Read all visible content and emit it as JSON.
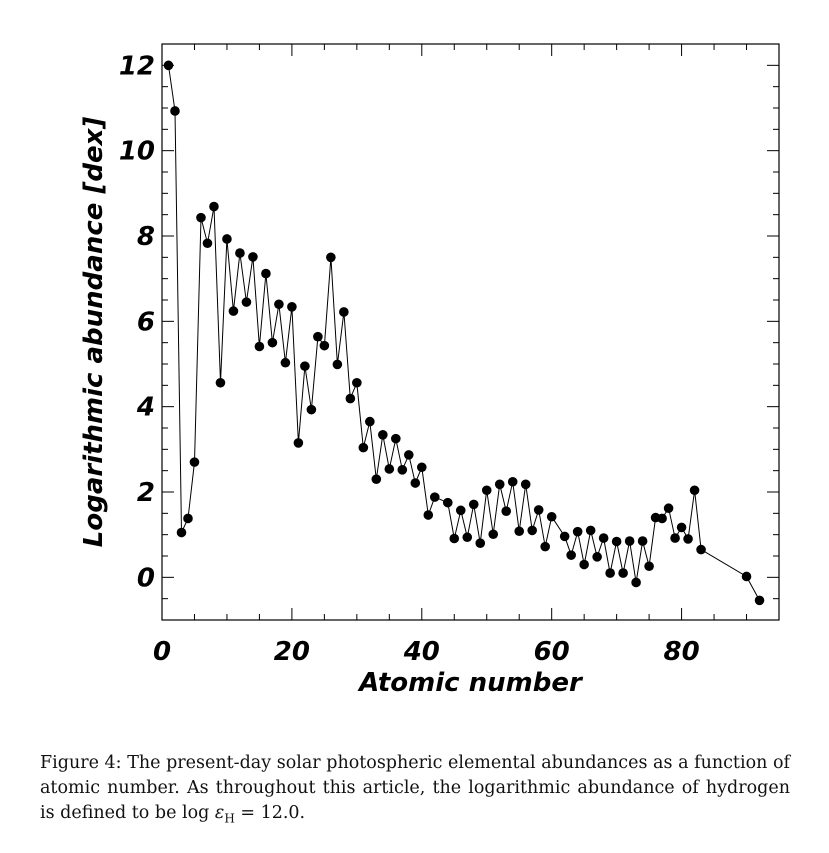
{
  "chart_data": {
    "type": "scatter",
    "connected": true,
    "title": "",
    "xlabel": "Atomic number",
    "ylabel": "Logarithmic abundance [dex]",
    "xlim": [
      0,
      95
    ],
    "ylim": [
      -1,
      12.5
    ],
    "xticks": [
      0,
      20,
      40,
      60,
      80
    ],
    "yticks": [
      0,
      2,
      4,
      6,
      8,
      10,
      12
    ],
    "grid": false,
    "legend": "none",
    "marker_color": "#000000",
    "points": [
      {
        "x": 1,
        "y": 12.0
      },
      {
        "x": 2,
        "y": 10.93
      },
      {
        "x": 3,
        "y": 1.05
      },
      {
        "x": 4,
        "y": 1.38
      },
      {
        "x": 5,
        "y": 2.7
      },
      {
        "x": 6,
        "y": 8.43
      },
      {
        "x": 7,
        "y": 7.83
      },
      {
        "x": 8,
        "y": 8.69
      },
      {
        "x": 9,
        "y": 4.56
      },
      {
        "x": 10,
        "y": 7.93
      },
      {
        "x": 11,
        "y": 6.24
      },
      {
        "x": 12,
        "y": 7.6
      },
      {
        "x": 13,
        "y": 6.45
      },
      {
        "x": 14,
        "y": 7.51
      },
      {
        "x": 15,
        "y": 5.41
      },
      {
        "x": 16,
        "y": 7.12
      },
      {
        "x": 17,
        "y": 5.5
      },
      {
        "x": 18,
        "y": 6.4
      },
      {
        "x": 19,
        "y": 5.03
      },
      {
        "x": 20,
        "y": 6.34
      },
      {
        "x": 21,
        "y": 3.15
      },
      {
        "x": 22,
        "y": 4.95
      },
      {
        "x": 23,
        "y": 3.93
      },
      {
        "x": 24,
        "y": 5.64
      },
      {
        "x": 25,
        "y": 5.43
      },
      {
        "x": 26,
        "y": 7.5
      },
      {
        "x": 27,
        "y": 4.99
      },
      {
        "x": 28,
        "y": 6.22
      },
      {
        "x": 29,
        "y": 4.19
      },
      {
        "x": 30,
        "y": 4.56
      },
      {
        "x": 31,
        "y": 3.04
      },
      {
        "x": 32,
        "y": 3.65
      },
      {
        "x": 33,
        "y": 2.3
      },
      {
        "x": 34,
        "y": 3.34
      },
      {
        "x": 35,
        "y": 2.54
      },
      {
        "x": 36,
        "y": 3.25
      },
      {
        "x": 37,
        "y": 2.52
      },
      {
        "x": 38,
        "y": 2.87
      },
      {
        "x": 39,
        "y": 2.21
      },
      {
        "x": 40,
        "y": 2.58
      },
      {
        "x": 41,
        "y": 1.46
      },
      {
        "x": 42,
        "y": 1.88
      },
      {
        "x": 44,
        "y": 1.75
      },
      {
        "x": 45,
        "y": 0.91
      },
      {
        "x": 46,
        "y": 1.57
      },
      {
        "x": 47,
        "y": 0.94
      },
      {
        "x": 48,
        "y": 1.71
      },
      {
        "x": 49,
        "y": 0.8
      },
      {
        "x": 50,
        "y": 2.04
      },
      {
        "x": 51,
        "y": 1.01
      },
      {
        "x": 52,
        "y": 2.18
      },
      {
        "x": 53,
        "y": 1.55
      },
      {
        "x": 54,
        "y": 2.24
      },
      {
        "x": 55,
        "y": 1.08
      },
      {
        "x": 56,
        "y": 2.18
      },
      {
        "x": 57,
        "y": 1.1
      },
      {
        "x": 58,
        "y": 1.58
      },
      {
        "x": 59,
        "y": 0.72
      },
      {
        "x": 60,
        "y": 1.42
      },
      {
        "x": 62,
        "y": 0.96
      },
      {
        "x": 63,
        "y": 0.52
      },
      {
        "x": 64,
        "y": 1.07
      },
      {
        "x": 65,
        "y": 0.3
      },
      {
        "x": 66,
        "y": 1.1
      },
      {
        "x": 67,
        "y": 0.48
      },
      {
        "x": 68,
        "y": 0.92
      },
      {
        "x": 69,
        "y": 0.1
      },
      {
        "x": 70,
        "y": 0.84
      },
      {
        "x": 71,
        "y": 0.1
      },
      {
        "x": 72,
        "y": 0.85
      },
      {
        "x": 73,
        "y": -0.12
      },
      {
        "x": 74,
        "y": 0.85
      },
      {
        "x": 75,
        "y": 0.26
      },
      {
        "x": 76,
        "y": 1.4
      },
      {
        "x": 77,
        "y": 1.38
      },
      {
        "x": 78,
        "y": 1.62
      },
      {
        "x": 79,
        "y": 0.92
      },
      {
        "x": 80,
        "y": 1.17
      },
      {
        "x": 81,
        "y": 0.9
      },
      {
        "x": 82,
        "y": 2.04
      },
      {
        "x": 83,
        "y": 0.65
      },
      {
        "x": 90,
        "y": 0.02
      },
      {
        "x": 92,
        "y": -0.54
      }
    ]
  },
  "caption": {
    "text": "Figure 4: The present-day solar photospheric elemental abundances as a function of atomic number. As throughout this article, the logarithmic abundance of hydrogen is defined to be log ",
    "epsilon_symbol": "ε",
    "subscript": "H",
    "tail": " = 12.0."
  }
}
